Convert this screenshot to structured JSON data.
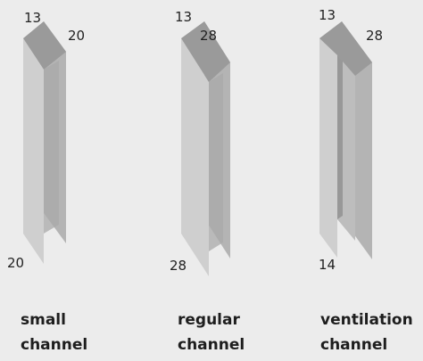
{
  "channels": [
    {
      "name_line1": "small",
      "name_line2": "channel",
      "top_left_dim": "13",
      "top_right_dim": "20",
      "bottom_dim": "20"
    },
    {
      "name_line1": "regular",
      "name_line2": "channel",
      "top_left_dim": "13",
      "top_right_dim": "28",
      "bottom_dim": "28"
    },
    {
      "name_line1": "ventilation",
      "name_line2": "channel",
      "top_left_dim": "13",
      "top_right_dim": "28",
      "bottom_dim": "14"
    }
  ],
  "colors": {
    "background": "#ececec",
    "top_face": "#9a9a9a",
    "front_face": "#cfcfcf",
    "side_face": "#b4b4b4",
    "inner_groove": "#a8a8a8",
    "text": "#1e1e1e"
  }
}
